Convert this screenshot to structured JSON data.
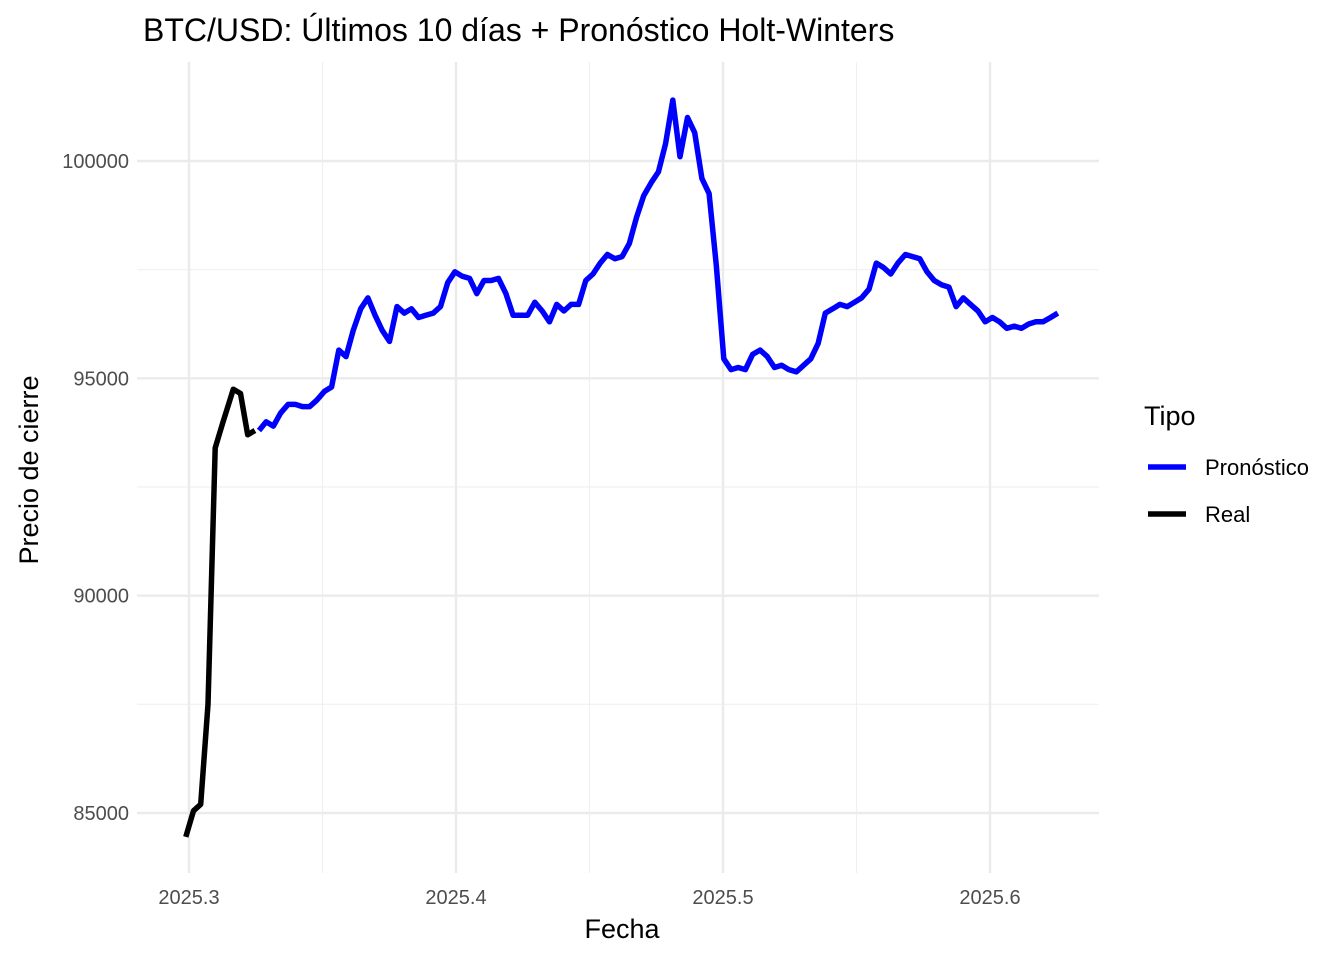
{
  "chart_data": {
    "type": "line",
    "title": "BTC/USD: Últimos 10 días + Pronóstico Holt-Winters",
    "xlabel": "Fecha",
    "ylabel": "Precio de cierre",
    "xlim": [
      2025.2988,
      2025.6262
    ],
    "ylim": [
      84000,
      102300
    ],
    "x_ticks": [
      2025.3,
      2025.4,
      2025.5,
      2025.6
    ],
    "x_tick_labels": [
      "2025.3",
      "2025.4",
      "2025.5",
      "2025.6"
    ],
    "y_ticks": [
      85000,
      90000,
      95000,
      100000
    ],
    "y_tick_labels": [
      "85000",
      "90000",
      "95000",
      "100000"
    ],
    "grid": true,
    "legend": {
      "title": "Tipo",
      "position": "right",
      "entries": [
        {
          "label": "Pronóstico",
          "color": "#0000ff"
        },
        {
          "label": "Real",
          "color": "#000000"
        }
      ]
    },
    "series": [
      {
        "name": "Real",
        "color": "#000000",
        "x": [
          2025.2988,
          2025.3017,
          2025.3044,
          2025.3071,
          2025.3098,
          2025.3125,
          2025.3166,
          2025.3193,
          2025.322,
          2025.3247
        ],
        "y": [
          84450,
          85050,
          85200,
          87500,
          93400,
          93950,
          94750,
          94650,
          93700,
          93800
        ]
      },
      {
        "name": "Pronóstico",
        "color": "#0000ff",
        "x": [
          2025.3262,
          2025.3289,
          2025.3316,
          2025.3343,
          2025.3371,
          2025.3398,
          2025.3425,
          2025.3452,
          2025.3479,
          2025.3507,
          2025.3534,
          2025.3561,
          2025.3588,
          2025.3615,
          2025.3643,
          2025.367,
          2025.3697,
          2025.3724,
          2025.3751,
          2025.3779,
          2025.3806,
          2025.3833,
          2025.386,
          2025.3887,
          2025.3915,
          2025.3942,
          2025.3969,
          2025.3996,
          2025.4023,
          2025.4051,
          2025.4078,
          2025.4105,
          2025.4132,
          2025.4159,
          2025.4187,
          2025.4214,
          2025.4241,
          2025.4268,
          2025.4295,
          2025.4323,
          2025.435,
          2025.4377,
          2025.4404,
          2025.4431,
          2025.4459,
          2025.4486,
          2025.4513,
          2025.454,
          2025.4567,
          2025.4595,
          2025.4622,
          2025.4649,
          2025.4676,
          2025.4703,
          2025.4731,
          2025.4758,
          2025.4785,
          2025.4812,
          2025.4839,
          2025.4867,
          2025.4894,
          2025.4921,
          2025.4948,
          2025.4975,
          2025.5003,
          2025.503,
          2025.5057,
          2025.5084,
          2025.5111,
          2025.5139,
          2025.5166,
          2025.5193,
          2025.522,
          2025.5247,
          2025.5275,
          2025.5302,
          2025.5329,
          2025.5356,
          2025.5383,
          2025.5411,
          2025.5438,
          2025.5465,
          2025.5492,
          2025.5519,
          2025.5547,
          2025.5574,
          2025.5601,
          2025.5628,
          2025.5655,
          2025.5683,
          2025.571,
          2025.5737,
          2025.5764,
          2025.5791,
          2025.5819,
          2025.5846,
          2025.5873,
          2025.59,
          2025.5927,
          2025.5955,
          2025.5982,
          2025.6009,
          2025.6036,
          2025.6063,
          2025.6091,
          2025.6118,
          2025.6145,
          2025.6172,
          2025.6199,
          2025.6227,
          2025.6254
        ],
        "y": [
          93800,
          94000,
          93900,
          94200,
          94400,
          94400,
          94350,
          94350,
          94500,
          94700,
          94800,
          95650,
          95500,
          96100,
          96600,
          96850,
          96450,
          96100,
          95850,
          96650,
          96500,
          96600,
          96400,
          96450,
          96500,
          96650,
          97200,
          97450,
          97350,
          97300,
          96950,
          97250,
          97250,
          97300,
          96950,
          96450,
          96450,
          96450,
          96750,
          96550,
          96300,
          96700,
          96550,
          96700,
          96700,
          97250,
          97400,
          97650,
          97850,
          97750,
          97800,
          98100,
          98700,
          99200,
          99500,
          99750,
          100400,
          101400,
          100100,
          101000,
          100650,
          99600,
          99250,
          97600,
          95450,
          95200,
          95250,
          95200,
          95550,
          95650,
          95500,
          95250,
          95300,
          95200,
          95150,
          95300,
          95450,
          95800,
          96500,
          96600,
          96700,
          96650,
          96750,
          96850,
          97050,
          97650,
          97550,
          97400,
          97650,
          97850,
          97800,
          97750,
          97450,
          97250,
          97150,
          97100,
          96650,
          96850,
          96700,
          96550,
          96300,
          96400,
          96300,
          96150,
          96200,
          96150,
          96250,
          96300,
          96300,
          96400,
          96500
        ]
      }
    ]
  }
}
